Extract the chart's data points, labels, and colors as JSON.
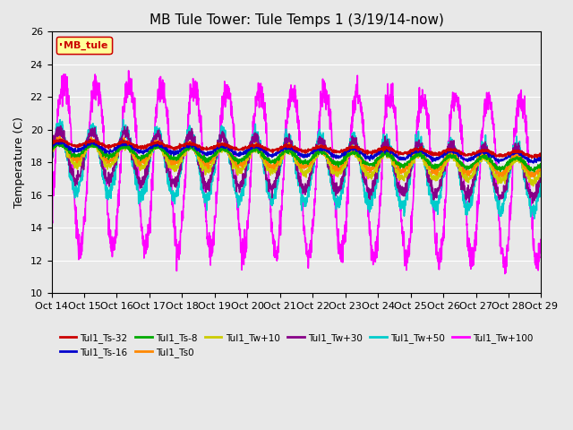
{
  "title": "MB Tule Tower: Tule Temps 1 (3/19/14-now)",
  "ylabel": "Temperature (C)",
  "xlabel": "",
  "ylim": [
    10,
    26
  ],
  "yticks": [
    10,
    12,
    14,
    16,
    18,
    20,
    22,
    24,
    26
  ],
  "xlim": [
    0,
    15
  ],
  "xtick_labels": [
    "Oct 14",
    "Oct 15",
    "Oct 16",
    "Oct 17",
    "Oct 18",
    "Oct 19",
    "Oct 20",
    "Oct 21",
    "Oct 22",
    "Oct 23",
    "Oct 24",
    "Oct 25",
    "Oct 26",
    "Oct 27",
    "Oct 28",
    "Oct 29"
  ],
  "legend_label": "MB_tule",
  "series_order": [
    "Tul1_Tw+100",
    "Tul1_Tw+50",
    "Tul1_Tw+30",
    "Tul1_Tw+10",
    "Tul1_Ts0",
    "Tul1_Ts-8",
    "Tul1_Ts-16",
    "Tul1_Ts-32"
  ],
  "legend_order": [
    "Tul1_Ts-32",
    "Tul1_Ts-16",
    "Tul1_Ts-8",
    "Tul1_Ts0",
    "Tul1_Tw+10",
    "Tul1_Tw+30",
    "Tul1_Tw+50",
    "Tul1_Tw+100"
  ],
  "series": {
    "Tul1_Ts-32": {
      "color": "#cc0000",
      "lw": 1.2
    },
    "Tul1_Ts-16": {
      "color": "#0000cc",
      "lw": 1.2
    },
    "Tul1_Ts-8": {
      "color": "#00aa00",
      "lw": 1.2
    },
    "Tul1_Ts0": {
      "color": "#ff8800",
      "lw": 1.2
    },
    "Tul1_Tw+10": {
      "color": "#cccc00",
      "lw": 1.2
    },
    "Tul1_Tw+30": {
      "color": "#880088",
      "lw": 1.2
    },
    "Tul1_Tw+50": {
      "color": "#00cccc",
      "lw": 1.2
    },
    "Tul1_Tw+100": {
      "color": "#ff00ff",
      "lw": 1.2
    }
  },
  "plot_bg_color": "#e8e8e8",
  "fig_bg_color": "#e8e8e8"
}
